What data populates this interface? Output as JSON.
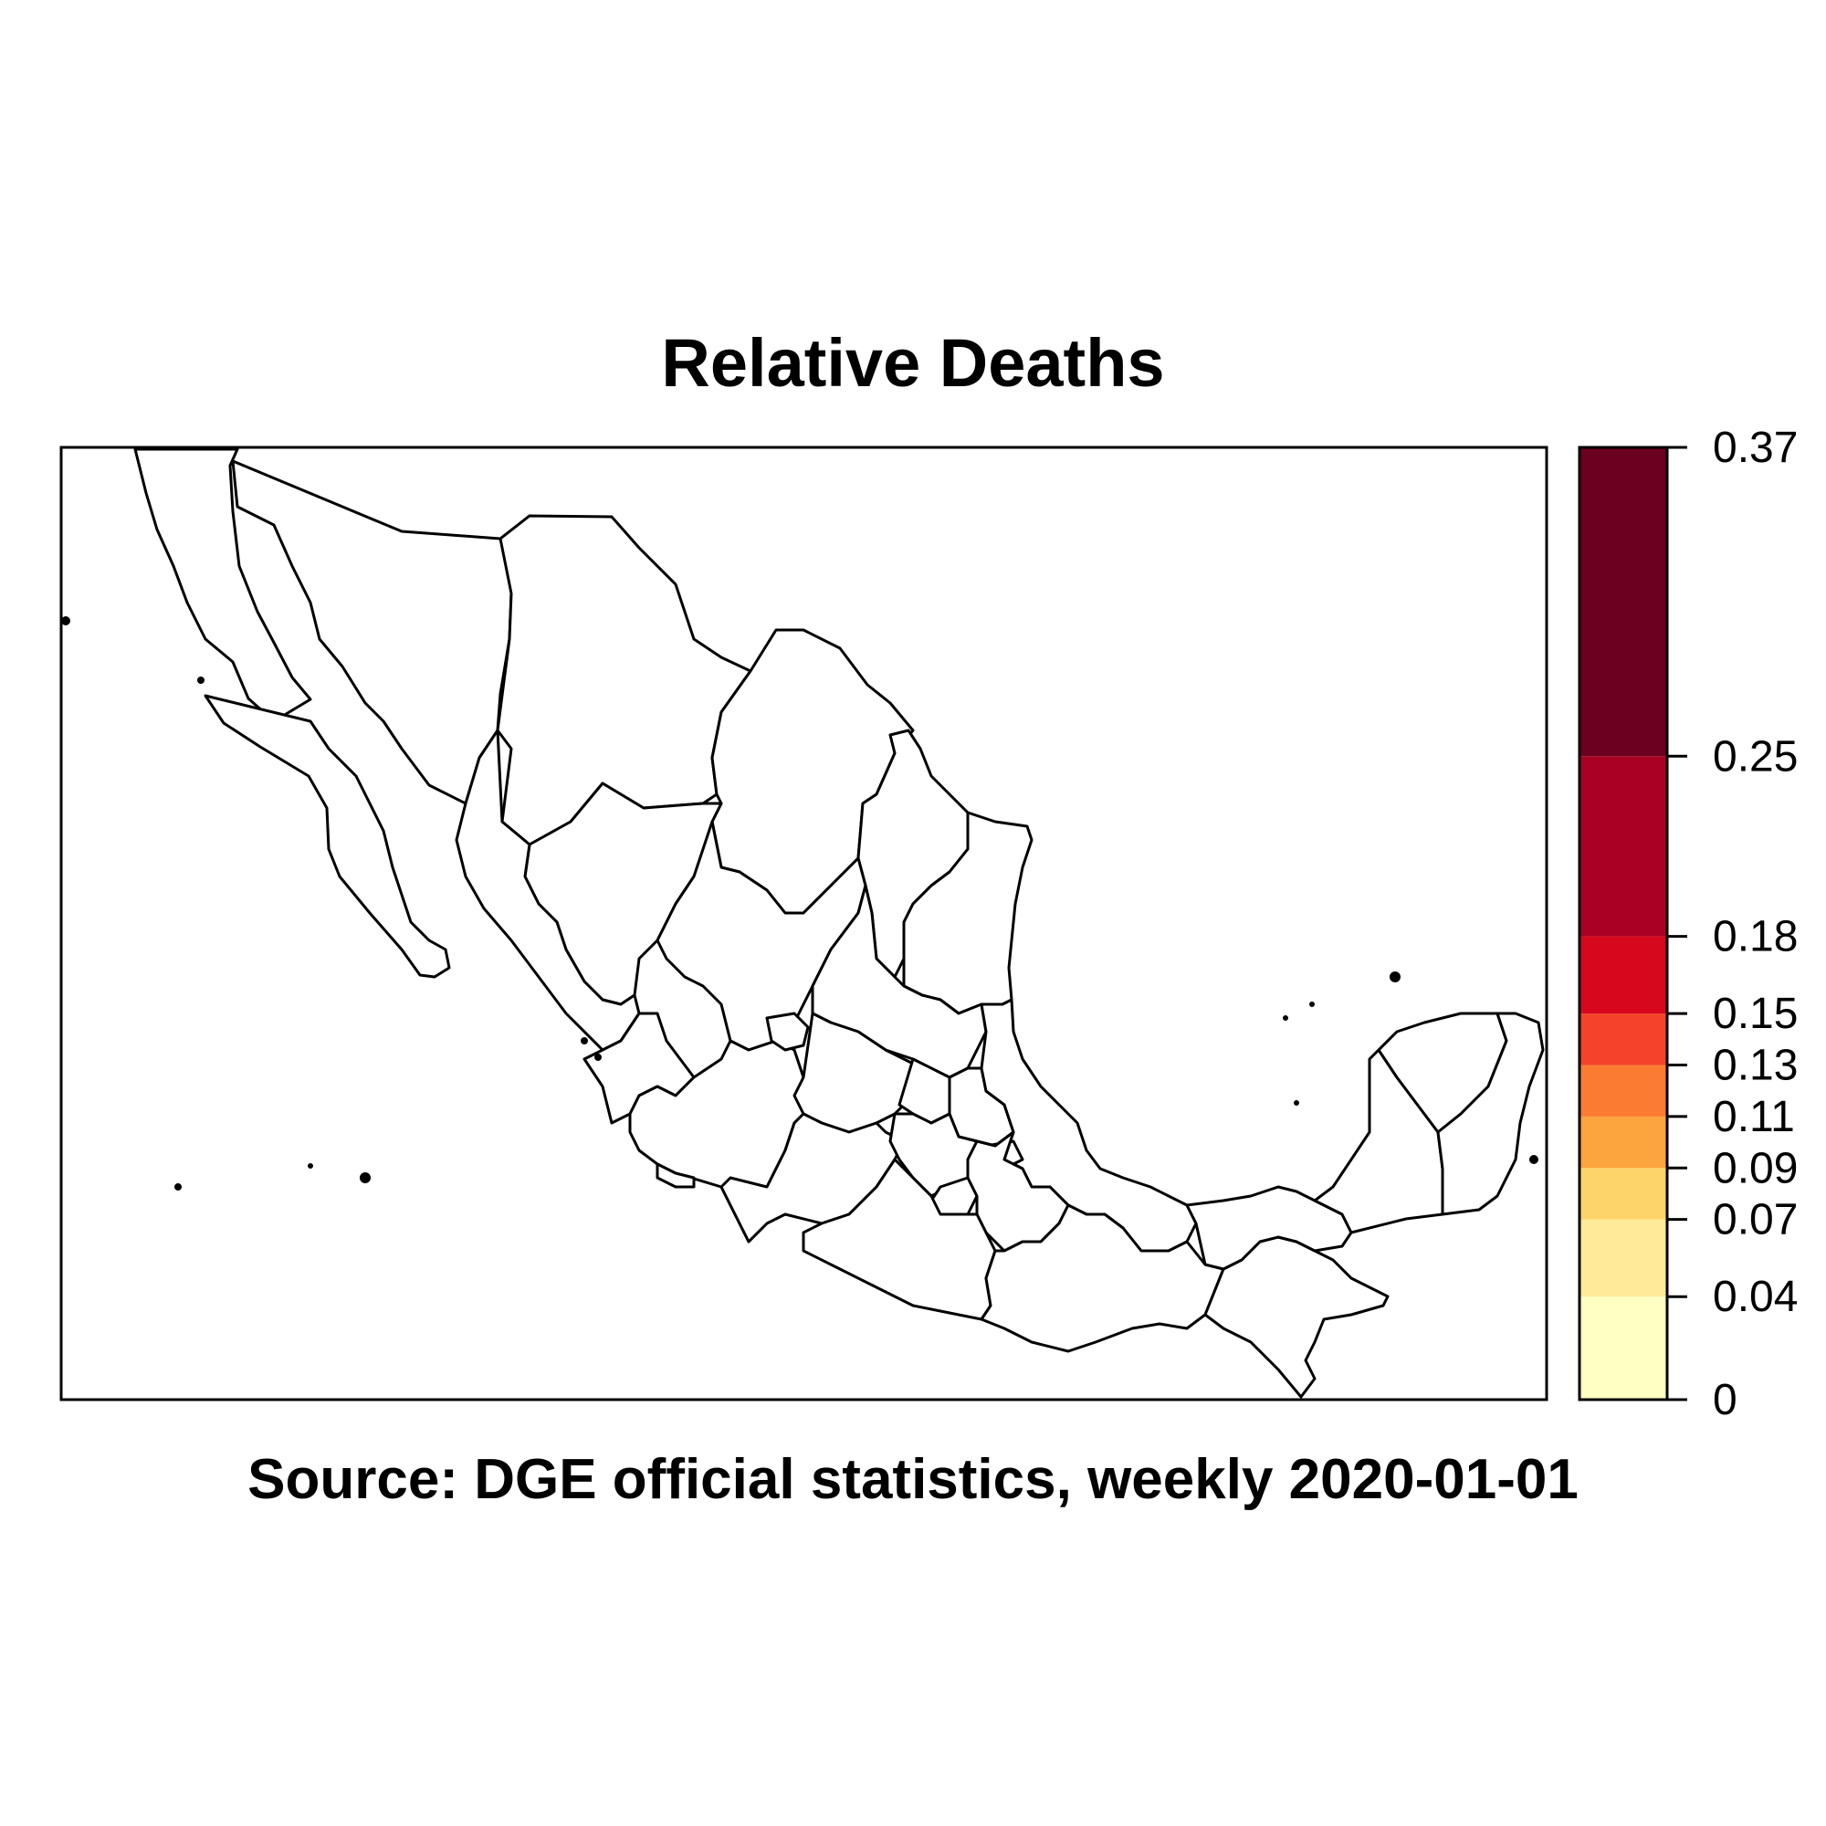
{
  "chart_data": {
    "type": "choropleth",
    "title": "Relative Deaths",
    "caption": "Source: DGE official statistics, weekly 2020-01-01",
    "legend": {
      "breaks": [
        0,
        0.04,
        0.07,
        0.09,
        0.11,
        0.13,
        0.15,
        0.18,
        0.25,
        0.37
      ],
      "tick_labels": [
        "0",
        "0.04",
        "0.07",
        "0.09",
        "0.11",
        "0.13",
        "0.15",
        "0.18",
        "0.25",
        "0.37"
      ],
      "colors": [
        "#ffffc4",
        "#feea98",
        "#fdd46a",
        "#fca43e",
        "#fb7b33",
        "#f4432a",
        "#d7081e",
        "#aa0023",
        "#6b0020"
      ],
      "placement": "right"
    },
    "region_fill": "#ffffff",
    "border_color": "#000000"
  }
}
